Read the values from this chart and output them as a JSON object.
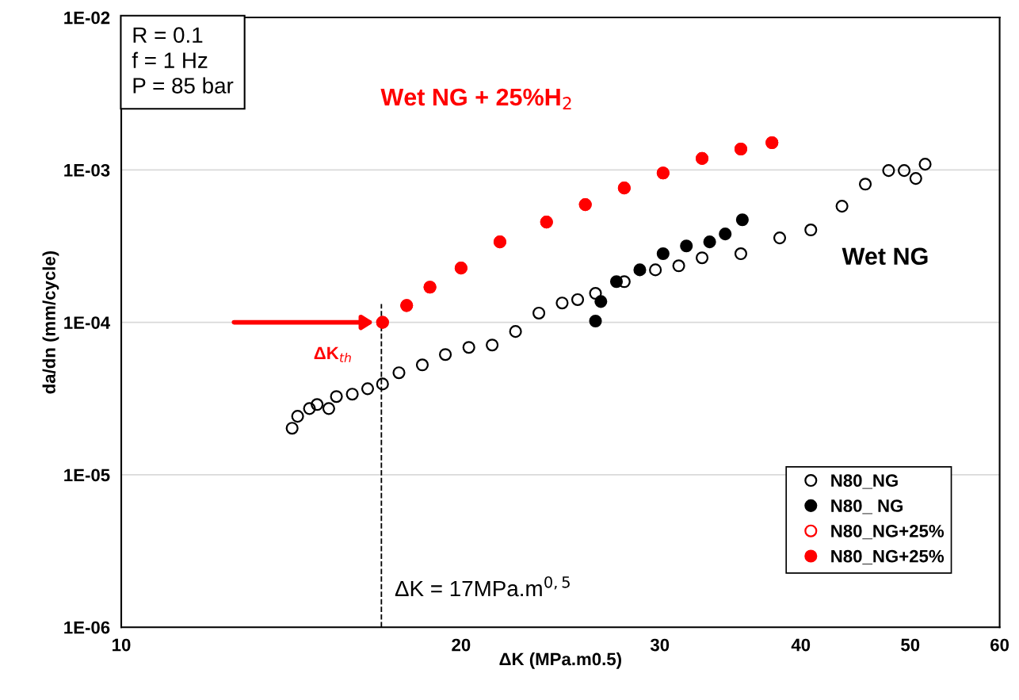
{
  "chart_data": {
    "type": "scatter",
    "xlabel": "ΔK (MPa.m0.5)",
    "ylabel": "da/dn (mm/cycle)",
    "log": "xy",
    "grid": "y",
    "legend": "bottom right",
    "marker": "circle",
    "xlim": [
      10,
      60
    ],
    "xticks": [
      10,
      20,
      30,
      40,
      50,
      60
    ],
    "ylim": [
      1e-06,
      0.01
    ],
    "yticks": [
      {
        "value": 1e-06,
        "label": "1E-06"
      },
      {
        "value": 1e-05,
        "label": "1E-05"
      },
      {
        "value": 0.0001,
        "label": "1E-04"
      },
      {
        "value": 0.001,
        "label": "1E-03"
      },
      {
        "value": 0.01,
        "label": "1E-02"
      }
    ],
    "series": [
      {
        "name": "N80_NG",
        "color": "#000000",
        "x": [
          14.17,
          14.33,
          14.68,
          14.91,
          15.27,
          15.51,
          16.02,
          16.53,
          17.04,
          17.62,
          18.48,
          19.37,
          20.32,
          21.31,
          22.35,
          23.44,
          24.58,
          25.37,
          26.31,
          27.9,
          29.73,
          31.18,
          32.7,
          35.39,
          38.31,
          40.82,
          43.5,
          45.62,
          47.84,
          49.38,
          50.57,
          51.54
        ],
        "values": [
          2.02e-05,
          2.42e-05,
          2.72e-05,
          2.89e-05,
          2.72e-05,
          3.26e-05,
          3.38e-05,
          3.67e-05,
          3.94e-05,
          4.67e-05,
          5.26e-05,
          6.15e-05,
          6.85e-05,
          7.1e-05,
          8.71e-05,
          0.000115,
          0.000134,
          0.000141,
          0.000155,
          0.000185,
          0.000221,
          0.000235,
          0.000265,
          0.000282,
          0.000358,
          0.000404,
          0.000578,
          0.000807,
          0.000991,
          0.000991,
          0.000879,
          0.00109
        ]
      },
      {
        "name": "N80_ NG",
        "color": "#000000",
        "x": [
          26.31,
          26.6,
          27.46,
          28.8,
          30.2,
          31.67,
          33.21,
          34.28,
          35.5
        ],
        "values": [
          0.000102,
          0.000137,
          0.000185,
          0.000221,
          0.000282,
          0.000317,
          0.000337,
          0.00038,
          0.000471
        ]
      },
      {
        "name": "N80_NG+25%",
        "color": "#ff0000",
        "x": [
          17.04,
          17.9,
          18.77,
          20.0,
          21.65,
          23.81,
          25.77,
          27.9,
          30.2,
          32.7,
          35.39,
          37.71
        ],
        "values": [
          0.0001,
          0.000129,
          0.00017,
          0.000227,
          0.000337,
          0.000455,
          0.000592,
          0.000761,
          0.000955,
          0.00119,
          0.00137,
          0.00151
        ]
      },
      {
        "name": "N80_NG+25%",
        "color": "#ff0000",
        "x": [
          17.04,
          17.9,
          18.77,
          20.0,
          21.65,
          23.81,
          25.77,
          27.9,
          30.2,
          32.7,
          35.39,
          37.71
        ],
        "values": [
          0.0001,
          0.000129,
          0.00017,
          0.000227,
          0.000337,
          0.000455,
          0.000592,
          0.000761,
          0.000955,
          0.00119,
          0.00137,
          0.00151
        ]
      }
    ],
    "ref_lines": [
      {
        "axis": "x",
        "value": 17,
        "label": "ΔK = 17MPa.m$^{0,5}$",
        "color": "#000000",
        "line_style": "dashed"
      }
    ],
    "annotations": [
      "R = 0.1\nf = 1 Hz\nP = 85 bar",
      "Wet NG + 25%H$_{2}$",
      "Wet NG",
      "ΔK$_{th}$"
    ]
  }
}
